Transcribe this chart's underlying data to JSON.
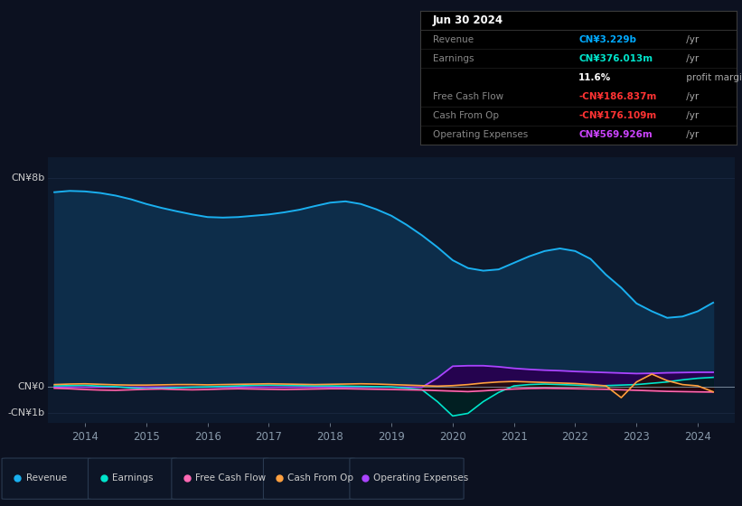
{
  "bg_color": "#0c1120",
  "plot_bg_color": "#0d1a2e",
  "grid_color": "#1a2840",
  "title_box_bg": "#000000",
  "title_box_border": "#333333",
  "title": "Jun 30 2024",
  "info_rows": [
    {
      "label": "Revenue",
      "value": "CN¥3.229b",
      "suffix": " /yr",
      "value_color": "#00aaff",
      "bold": true
    },
    {
      "label": "Earnings",
      "value": "CN¥376.013m",
      "suffix": " /yr",
      "value_color": "#00e5cc",
      "bold": true
    },
    {
      "label": "",
      "value": "11.6%",
      "suffix": " profit margin",
      "value_color": "#ffffff",
      "bold": true
    },
    {
      "label": "Free Cash Flow",
      "value": "-CN¥186.837m",
      "suffix": " /yr",
      "value_color": "#ff3333",
      "bold": true
    },
    {
      "label": "Cash From Op",
      "value": "-CN¥176.109m",
      "suffix": " /yr",
      "value_color": "#ff3333",
      "bold": true
    },
    {
      "label": "Operating Expenses",
      "value": "CN¥569.926m",
      "suffix": " /yr",
      "value_color": "#cc44ff",
      "bold": true
    }
  ],
  "ylabel_top": "CN¥8b",
  "ylabel_zero": "CN¥0",
  "ylabel_neg": "-CN¥1b",
  "x_ticks": [
    2014,
    2015,
    2016,
    2017,
    2018,
    2019,
    2020,
    2021,
    2022,
    2023,
    2024
  ],
  "ylim": [
    -1.35,
    8.8
  ],
  "xlim": [
    2013.4,
    2024.6
  ],
  "revenue": {
    "color": "#1ab0f0",
    "fill": "#0d2d4a",
    "label": "Revenue",
    "x": [
      2013.5,
      2013.75,
      2014.0,
      2014.25,
      2014.5,
      2014.75,
      2015.0,
      2015.25,
      2015.5,
      2015.75,
      2016.0,
      2016.25,
      2016.5,
      2016.75,
      2017.0,
      2017.25,
      2017.5,
      2017.75,
      2018.0,
      2018.25,
      2018.5,
      2018.75,
      2019.0,
      2019.25,
      2019.5,
      2019.75,
      2020.0,
      2020.25,
      2020.5,
      2020.75,
      2021.0,
      2021.25,
      2021.5,
      2021.75,
      2022.0,
      2022.25,
      2022.5,
      2022.75,
      2023.0,
      2023.25,
      2023.5,
      2023.75,
      2024.0,
      2024.25
    ],
    "y": [
      7.45,
      7.5,
      7.48,
      7.42,
      7.32,
      7.18,
      7.0,
      6.85,
      6.72,
      6.6,
      6.5,
      6.48,
      6.5,
      6.55,
      6.6,
      6.68,
      6.78,
      6.92,
      7.05,
      7.1,
      7.0,
      6.8,
      6.55,
      6.2,
      5.8,
      5.35,
      4.85,
      4.55,
      4.45,
      4.5,
      4.75,
      5.0,
      5.2,
      5.3,
      5.2,
      4.9,
      4.3,
      3.8,
      3.2,
      2.9,
      2.65,
      2.7,
      2.9,
      3.23
    ]
  },
  "earnings": {
    "color": "#00e5cc",
    "fill": "#002020",
    "label": "Earnings",
    "x": [
      2013.5,
      2013.75,
      2014.0,
      2014.25,
      2014.5,
      2014.75,
      2015.0,
      2015.25,
      2015.5,
      2015.75,
      2016.0,
      2016.25,
      2016.5,
      2016.75,
      2017.0,
      2017.25,
      2017.5,
      2017.75,
      2018.0,
      2018.25,
      2018.5,
      2018.75,
      2019.0,
      2019.25,
      2019.5,
      2019.75,
      2020.0,
      2020.25,
      2020.5,
      2020.75,
      2021.0,
      2021.25,
      2021.5,
      2021.75,
      2022.0,
      2022.25,
      2022.5,
      2022.75,
      2023.0,
      2023.25,
      2023.5,
      2023.75,
      2024.0,
      2024.25
    ],
    "y": [
      0.05,
      0.06,
      0.07,
      0.04,
      0.02,
      -0.03,
      -0.06,
      -0.04,
      -0.02,
      0.0,
      0.01,
      0.03,
      0.05,
      0.07,
      0.08,
      0.07,
      0.06,
      0.05,
      0.05,
      0.04,
      0.03,
      0.02,
      0.01,
      -0.04,
      -0.1,
      -0.55,
      -1.1,
      -1.0,
      -0.55,
      -0.2,
      0.05,
      0.1,
      0.12,
      0.1,
      0.08,
      0.06,
      0.06,
      0.08,
      0.1,
      0.15,
      0.2,
      0.28,
      0.34,
      0.376
    ]
  },
  "free_cash_flow": {
    "color": "#ff69b4",
    "fill": "#300010",
    "label": "Free Cash Flow",
    "x": [
      2013.5,
      2013.75,
      2014.0,
      2014.25,
      2014.5,
      2014.75,
      2015.0,
      2015.25,
      2015.5,
      2015.75,
      2016.0,
      2016.25,
      2016.5,
      2016.75,
      2017.0,
      2017.25,
      2017.5,
      2017.75,
      2018.0,
      2018.25,
      2018.5,
      2018.75,
      2019.0,
      2019.25,
      2019.5,
      2019.75,
      2020.0,
      2020.25,
      2020.5,
      2020.75,
      2021.0,
      2021.25,
      2021.5,
      2021.75,
      2022.0,
      2022.25,
      2022.5,
      2022.75,
      2023.0,
      2023.25,
      2023.5,
      2023.75,
      2024.0,
      2024.25
    ],
    "y": [
      -0.04,
      -0.06,
      -0.09,
      -0.11,
      -0.12,
      -0.1,
      -0.08,
      -0.07,
      -0.09,
      -0.1,
      -0.09,
      -0.07,
      -0.06,
      -0.07,
      -0.08,
      -0.09,
      -0.08,
      -0.07,
      -0.06,
      -0.06,
      -0.07,
      -0.08,
      -0.09,
      -0.1,
      -0.11,
      -0.13,
      -0.15,
      -0.17,
      -0.14,
      -0.1,
      -0.07,
      -0.05,
      -0.04,
      -0.05,
      -0.06,
      -0.07,
      -0.08,
      -0.1,
      -0.12,
      -0.14,
      -0.16,
      -0.17,
      -0.18,
      -0.187
    ]
  },
  "cash_from_op": {
    "color": "#ffa040",
    "fill": "#251000",
    "label": "Cash From Op",
    "x": [
      2013.5,
      2013.75,
      2014.0,
      2014.25,
      2014.5,
      2014.75,
      2015.0,
      2015.25,
      2015.5,
      2015.75,
      2016.0,
      2016.25,
      2016.5,
      2016.75,
      2017.0,
      2017.25,
      2017.5,
      2017.75,
      2018.0,
      2018.25,
      2018.5,
      2018.75,
      2019.0,
      2019.25,
      2019.5,
      2019.75,
      2020.0,
      2020.25,
      2020.5,
      2020.75,
      2021.0,
      2021.25,
      2021.5,
      2021.75,
      2022.0,
      2022.25,
      2022.5,
      2022.75,
      2023.0,
      2023.25,
      2023.5,
      2023.75,
      2024.0,
      2024.25
    ],
    "y": [
      0.1,
      0.12,
      0.13,
      0.11,
      0.09,
      0.08,
      0.08,
      0.09,
      0.1,
      0.1,
      0.09,
      0.1,
      0.11,
      0.12,
      0.13,
      0.12,
      0.11,
      0.1,
      0.11,
      0.12,
      0.13,
      0.12,
      0.1,
      0.08,
      0.06,
      0.04,
      0.06,
      0.1,
      0.16,
      0.2,
      0.22,
      0.2,
      0.18,
      0.16,
      0.14,
      0.1,
      0.05,
      -0.4,
      0.2,
      0.5,
      0.25,
      0.1,
      0.05,
      -0.176
    ]
  },
  "operating_expenses": {
    "color": "#aa44ff",
    "fill": "#280050",
    "label": "Operating Expenses",
    "x": [
      2013.5,
      2019.5,
      2019.75,
      2020.0,
      2020.25,
      2020.5,
      2020.75,
      2021.0,
      2021.25,
      2021.5,
      2021.75,
      2022.0,
      2022.25,
      2022.5,
      2022.75,
      2023.0,
      2023.25,
      2023.5,
      2023.75,
      2024.0,
      2024.25
    ],
    "y": [
      0.0,
      0.0,
      0.35,
      0.8,
      0.82,
      0.82,
      0.78,
      0.72,
      0.68,
      0.65,
      0.63,
      0.6,
      0.58,
      0.56,
      0.54,
      0.52,
      0.53,
      0.55,
      0.56,
      0.57,
      0.57
    ]
  },
  "legend_items": [
    {
      "label": "Revenue",
      "color": "#1ab0f0"
    },
    {
      "label": "Earnings",
      "color": "#00e5cc"
    },
    {
      "label": "Free Cash Flow",
      "color": "#ff69b4"
    },
    {
      "label": "Cash From Op",
      "color": "#ffa040"
    },
    {
      "label": "Operating Expenses",
      "color": "#aa44ff"
    }
  ]
}
